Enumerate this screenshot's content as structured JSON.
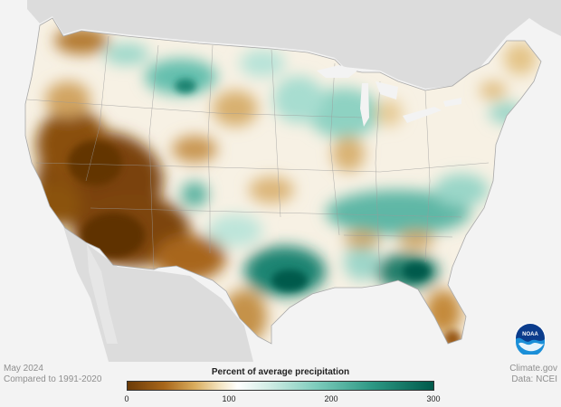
{
  "map": {
    "region": "Contiguous United States",
    "description": "Percent of average precipitation for May 2024 relative to 1991-2020",
    "legend_title": "Percent of average precipitation",
    "legend_ticks": [
      "0",
      "100",
      "200",
      "300"
    ],
    "legend_colors": [
      "#6b3b08",
      "#a8661a",
      "#d9ad5e",
      "#f3e3bf",
      "#ffffff",
      "#cdebe3",
      "#7ccbbb",
      "#2d9884",
      "#005a4b"
    ]
  },
  "footer": {
    "date": "May 2024",
    "baseline": "Compared to 1991-2020",
    "source_site": "Climate.gov",
    "data_source": "Data: NCEI"
  },
  "logo": {
    "name": "noaa-logo",
    "text": "NOAA"
  }
}
